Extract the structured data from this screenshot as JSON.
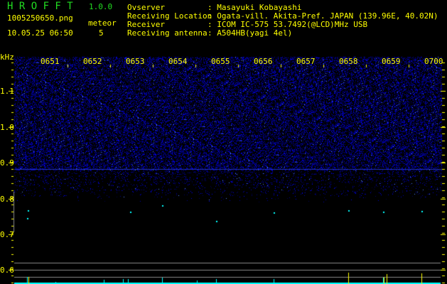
{
  "header": {
    "app_name": "H R O F F T",
    "version": "1.0.0",
    "filename": "1005250650.png",
    "datetime": "10.05.25 06:50",
    "meteor_label": "meteor",
    "meteor_count": "5"
  },
  "info": [
    {
      "label": "Ovserver",
      "value": ": Masayuki Kobayashi"
    },
    {
      "label": "Receiving Location",
      "value": ": Ogata-vill. Akita-Pref. JAPAN (139.96E, 40.02N)"
    },
    {
      "label": "Receiver",
      "value": ": ICOM IC-575 53.7492(@LCD)MHz USB"
    },
    {
      "label": "Receiving antenna",
      "value": ": A504HB(yagi 4el)"
    }
  ],
  "spectrogram": {
    "y_unit": "kHz",
    "y_ticks": [
      "1.1",
      "1.0",
      "0.9",
      "0.8",
      "0.7",
      "0.6"
    ],
    "time_labels": [
      "0651",
      "0652",
      "0653",
      "0654",
      "0655",
      "0656",
      "0657",
      "0658",
      "0659",
      "0700"
    ],
    "colors": {
      "noise": "#2020ff",
      "axis": "#ffff00",
      "meteor": "#00ffff",
      "grid": "#888888"
    }
  }
}
